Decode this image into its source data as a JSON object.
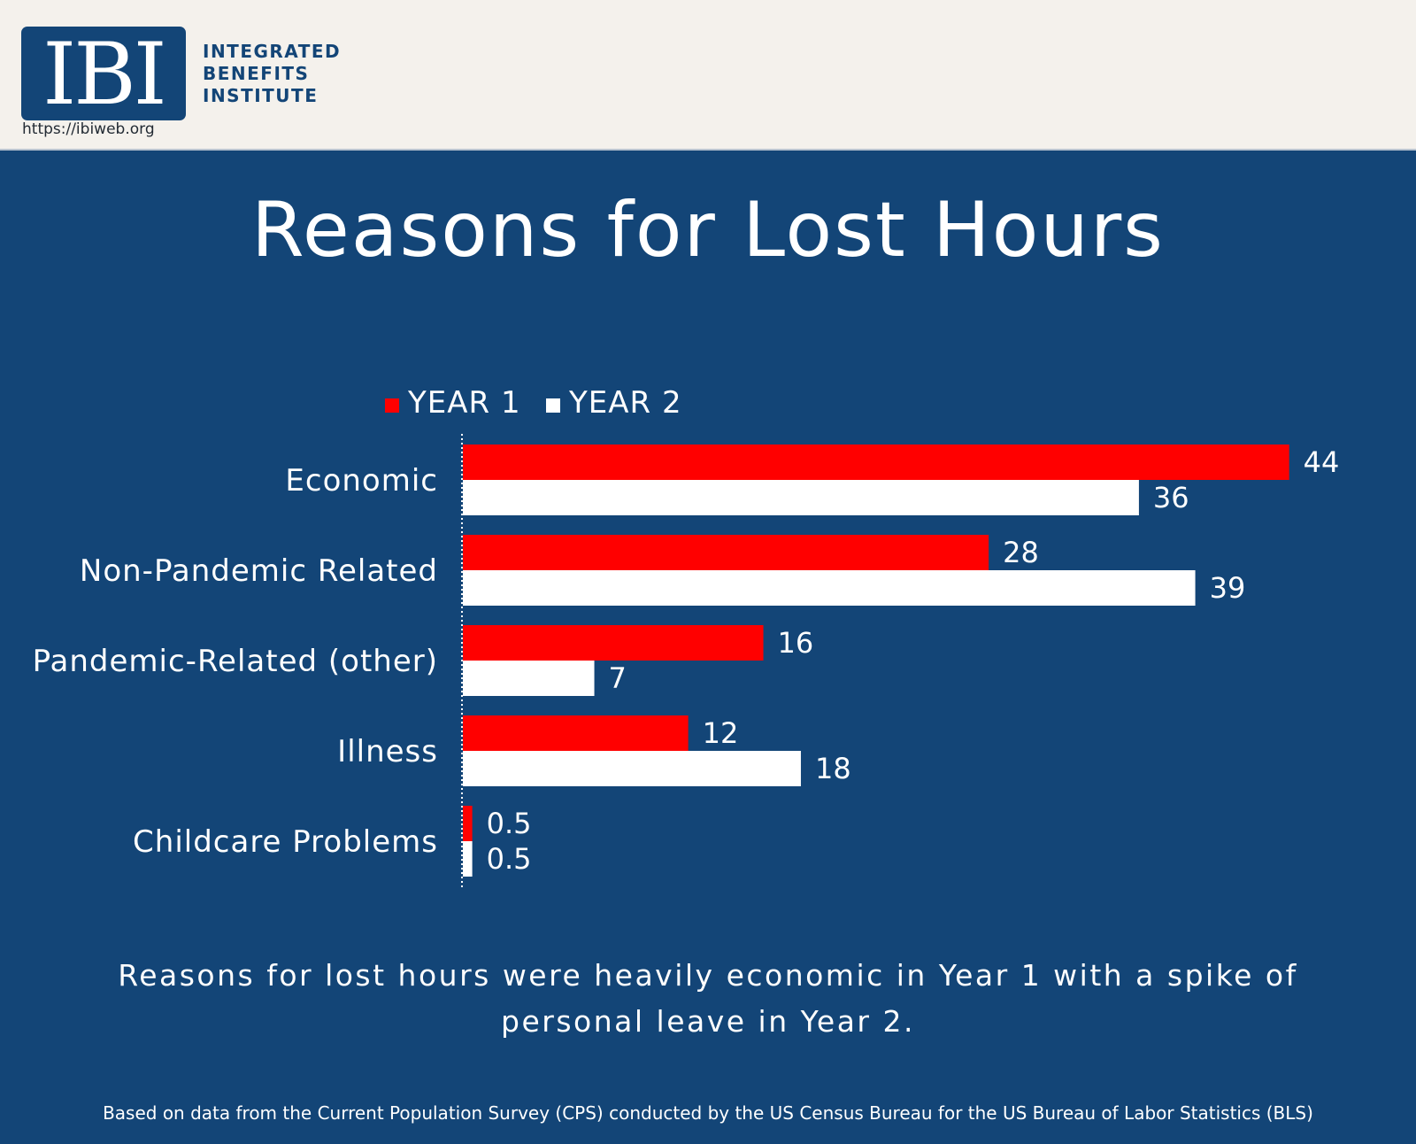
{
  "header": {
    "logo_text": "IBI",
    "org_name_lines": [
      "INTEGRATED",
      "BENEFITS",
      "INSTITUTE"
    ],
    "url": "https://ibiweb.org"
  },
  "colors": {
    "background": "#134577",
    "header_background": "#f4f1ec",
    "year1": "#ff0000",
    "year2": "#ffffff"
  },
  "chart_data": {
    "type": "bar",
    "orientation": "horizontal",
    "title": "Reasons for Lost Hours",
    "categories": [
      "Economic",
      "Non-Pandemic Related",
      "Pandemic-Related (other)",
      "Illness",
      "Childcare Problems"
    ],
    "series": [
      {
        "name": "YEAR 1",
        "values": [
          44,
          28,
          16,
          12,
          0.5
        ],
        "color": "#ff0000"
      },
      {
        "name": "YEAR 2",
        "values": [
          36,
          39,
          7,
          18,
          0.5
        ],
        "color": "#ffffff"
      }
    ],
    "value_labels": [
      [
        "44",
        "28",
        "16",
        "12",
        "0.5"
      ],
      [
        "36",
        "39",
        "7",
        "18",
        "0.5"
      ]
    ],
    "xlim": [
      0,
      44
    ],
    "legend_position": "top",
    "grid": false
  },
  "caption": "Reasons for lost hours were heavily economic in Year 1 with a spike of personal leave in Year 2.",
  "source": "Based on data from the Current Population Survey (CPS) conducted by the US Census Bureau for the US Bureau of Labor Statistics (BLS)"
}
